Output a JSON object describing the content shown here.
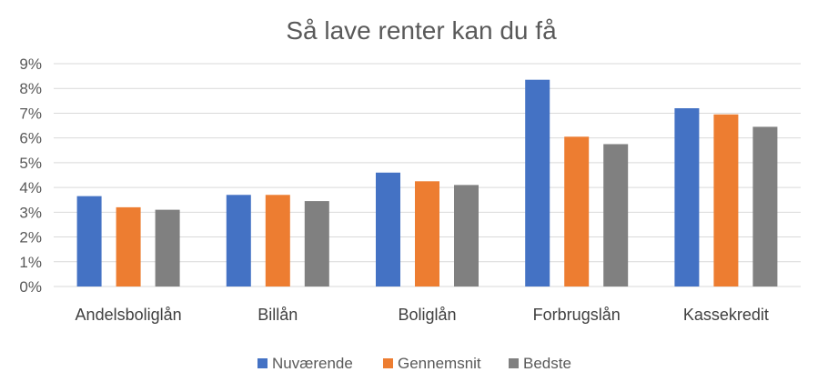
{
  "chart_data": {
    "type": "bar",
    "title": "Så lave renter kan du få",
    "xlabel": "",
    "ylabel": "",
    "categories": [
      "Andelsboliglån",
      "Billån",
      "Boliglån",
      "Forbrugslån",
      "Kassekredit"
    ],
    "series": [
      {
        "name": "Nuværende",
        "color": "#4472C4",
        "values": [
          3.65,
          3.7,
          4.6,
          8.35,
          7.2
        ]
      },
      {
        "name": "Gennemsnit",
        "color": "#ED7D31",
        "values": [
          3.2,
          3.7,
          4.25,
          6.05,
          6.95
        ]
      },
      {
        "name": "Bedste",
        "color": "#808080",
        "values": [
          3.1,
          3.45,
          4.1,
          5.75,
          6.45
        ]
      }
    ],
    "ylim": [
      0,
      9
    ],
    "yticks": [
      {
        "value": 0,
        "label": "0%"
      },
      {
        "value": 1,
        "label": "1%"
      },
      {
        "value": 2,
        "label": "2%"
      },
      {
        "value": 3,
        "label": "3%"
      },
      {
        "value": 4,
        "label": "4%"
      },
      {
        "value": 5,
        "label": "5%"
      },
      {
        "value": 6,
        "label": "6%"
      },
      {
        "value": 7,
        "label": "7%"
      },
      {
        "value": 8,
        "label": "8%"
      },
      {
        "value": 9,
        "label": "9%"
      }
    ],
    "grid": true,
    "legend_position": "bottom"
  }
}
